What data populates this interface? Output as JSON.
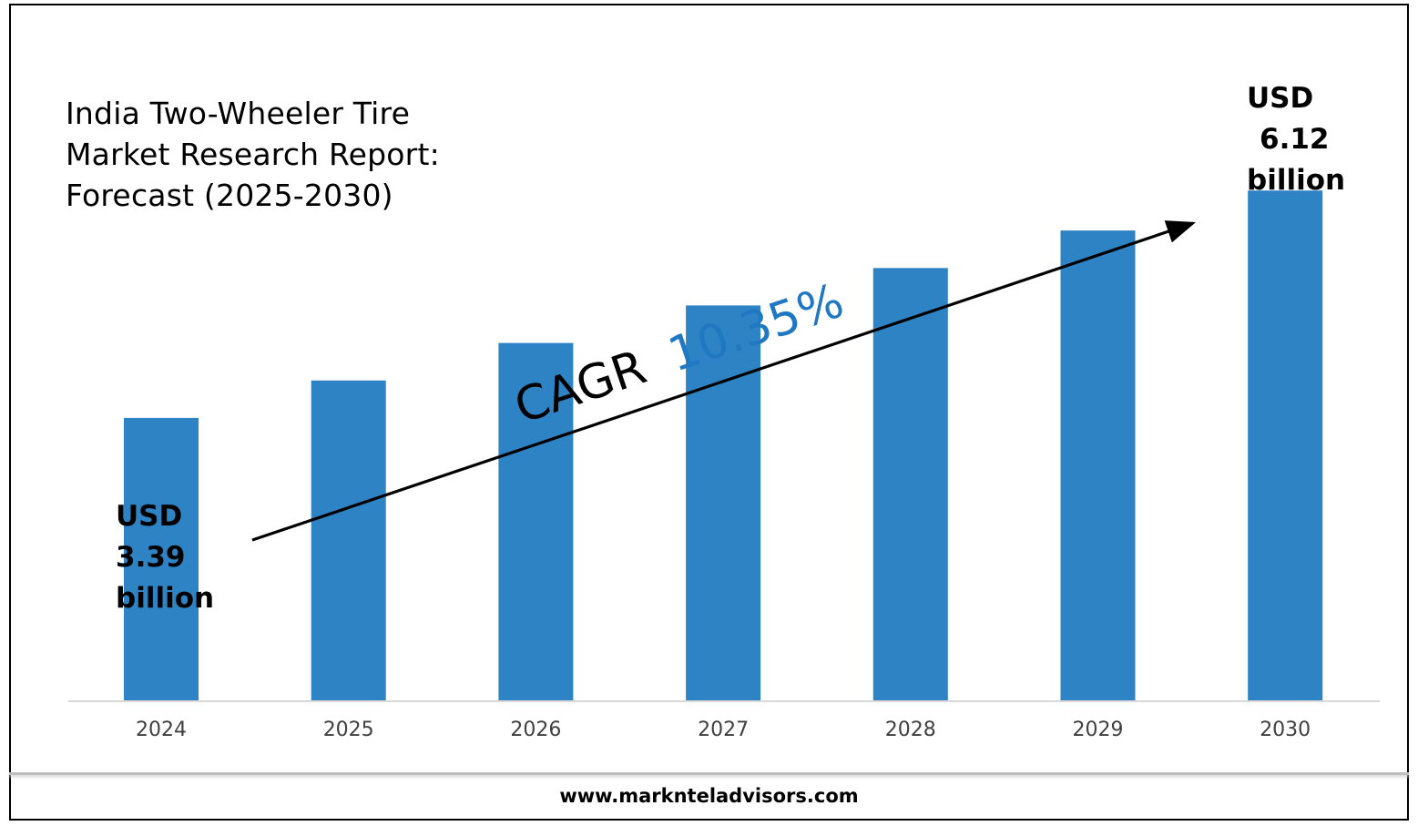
{
  "title_lines": [
    "India Two-Wheeler Tire",
    "Market Research Report:",
    "Forecast (2025-2030)"
  ],
  "footer": {
    "url": "www.marknteladvisors.com"
  },
  "colors": {
    "bar": "#2e83c4",
    "cagr_value": "#1f78c1",
    "text": "#000000",
    "axis": "#d9d9d9",
    "tick": "#404040"
  },
  "chart_data": {
    "type": "bar",
    "categories": [
      "2024",
      "2025",
      "2026",
      "2027",
      "2028",
      "2029",
      "2030"
    ],
    "values": [
      3.39,
      3.84,
      4.29,
      4.74,
      5.19,
      5.64,
      6.12
    ],
    "ylim": [
      0,
      6.8
    ],
    "grid": false,
    "data_labels": [
      {
        "category": "2024",
        "lines": [
          "USD",
          "3.39",
          "billion"
        ]
      },
      {
        "category": "2030",
        "lines": [
          "USD",
          "6.12",
          "billion"
        ]
      }
    ],
    "annotation": {
      "label": "CAGR",
      "value": "10.35%"
    }
  }
}
